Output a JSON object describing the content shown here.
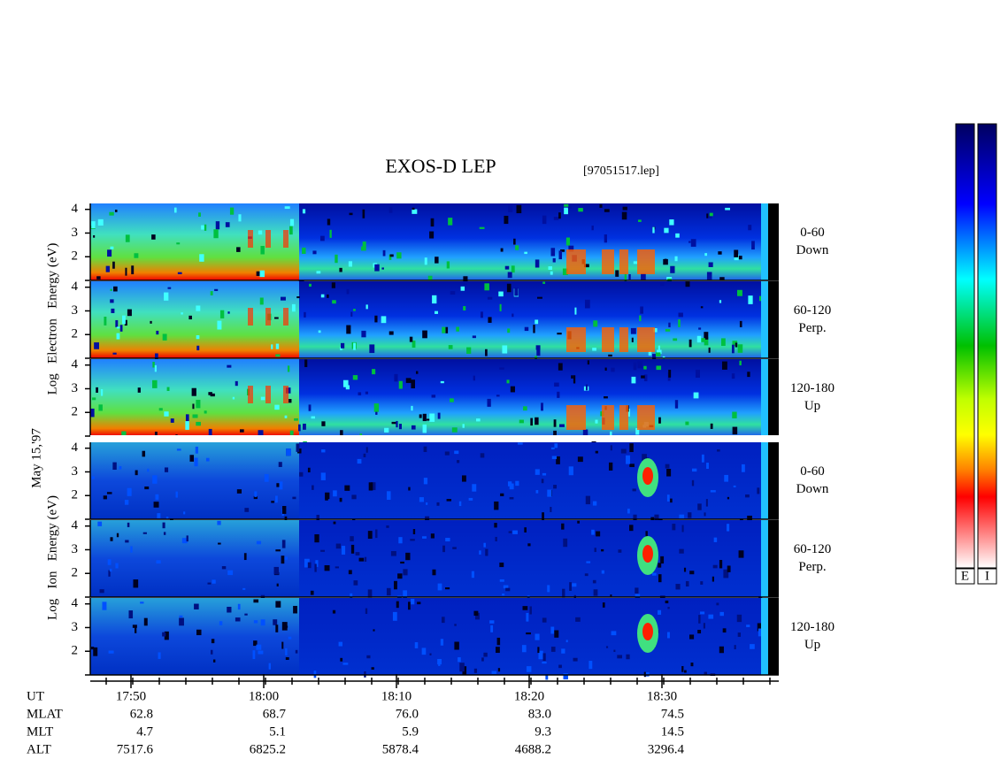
{
  "chart_data": {
    "type": "spectrogram",
    "title": "EXOS-D LEP",
    "file": "[97051517.lep]",
    "date": "May 15,'97",
    "ylim": [
      1,
      4.25
    ],
    "yticks": [
      2,
      3,
      4
    ],
    "groups": [
      {
        "label": "Log   Electron   Energy (eV)",
        "panels": [
          [
            "0-60",
            "Down"
          ],
          [
            "60-120",
            "Perp."
          ],
          [
            "120-180",
            "Up"
          ]
        ]
      },
      {
        "label": "Log   Ion   Energy (eV)",
        "panels": [
          [
            "0-60",
            "Down"
          ],
          [
            "60-120",
            "Perp."
          ],
          [
            "120-180",
            "Up"
          ]
        ]
      }
    ],
    "ephemeris": {
      "labels": [
        "UT",
        "MLAT",
        "MLT",
        "ALT"
      ],
      "rows": [
        [
          "17:50",
          "18:00",
          "18:10",
          "18:20",
          "18:30"
        ],
        [
          "62.8",
          "68.7",
          "76.0",
          "83.0",
          "74.5"
        ],
        [
          "4.7",
          "5.1",
          "5.9",
          "9.3",
          "14.5"
        ],
        [
          "7517.6",
          "6825.2",
          "5878.4",
          "4688.2",
          "3296.4"
        ]
      ]
    },
    "colorbars": [
      "E",
      "I"
    ]
  }
}
